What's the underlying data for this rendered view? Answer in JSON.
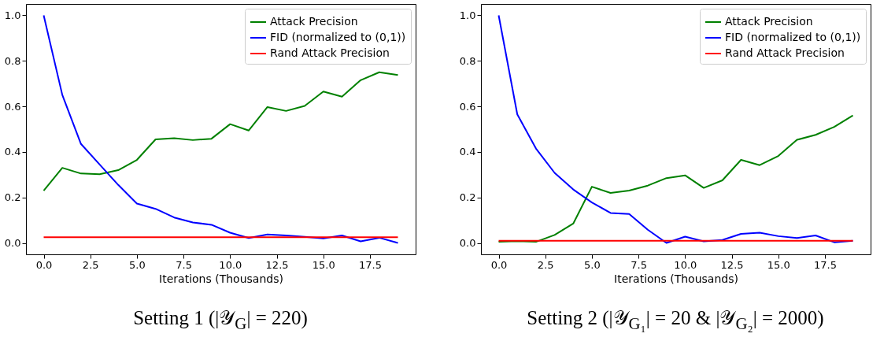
{
  "chart_data": [
    {
      "type": "line",
      "title": "Setting 1 (|𝒴$_{G}$| = 220)",
      "xlabel": "Iterations (Thousands)",
      "x": [
        0,
        1,
        2,
        3,
        4,
        5,
        6,
        7,
        8,
        9,
        10,
        11,
        12,
        13,
        14,
        15,
        16,
        17,
        18,
        19
      ],
      "xlim": [
        -0.95,
        19.95
      ],
      "ylim": [
        -0.05,
        1.05
      ],
      "xticks": [
        {
          "value": 0,
          "label": "0.0"
        },
        {
          "value": 2.5,
          "label": "2.5"
        },
        {
          "value": 5,
          "label": "5.0"
        },
        {
          "value": 7.5,
          "label": "7.5"
        },
        {
          "value": 10,
          "label": "10.0"
        },
        {
          "value": 12.5,
          "label": "12.5"
        },
        {
          "value": 15,
          "label": "15.0"
        },
        {
          "value": 17.5,
          "label": "17.5"
        }
      ],
      "yticks": [
        {
          "value": 0,
          "label": "0.0"
        },
        {
          "value": 0.2,
          "label": "0.2"
        },
        {
          "value": 0.4,
          "label": "0.4"
        },
        {
          "value": 0.6,
          "label": "0.6"
        },
        {
          "value": 0.8,
          "label": "0.8"
        },
        {
          "value": 1,
          "label": "1.0"
        }
      ],
      "grid": false,
      "legend": "top right",
      "series": [
        {
          "name": "Attack Precision",
          "color": "#008000",
          "values": [
            0.23,
            0.33,
            0.305,
            0.302,
            0.32,
            0.365,
            0.455,
            0.46,
            0.452,
            0.458,
            0.522,
            0.494,
            0.597,
            0.58,
            0.602,
            0.665,
            0.643,
            0.715,
            0.75,
            0.738
          ]
        },
        {
          "name": "FID (normalized to (0,1))",
          "color": "#0000ff",
          "values": [
            1.0,
            0.65,
            0.435,
            0.345,
            0.255,
            0.173,
            0.15,
            0.112,
            0.09,
            0.08,
            0.045,
            0.022,
            0.037,
            0.033,
            0.027,
            0.02,
            0.033,
            0.007,
            0.023,
            0.0
          ]
        },
        {
          "name": "Rand Attack Precision",
          "color": "#ff0000",
          "values": [
            0.025,
            0.025,
            0.025,
            0.025,
            0.025,
            0.025,
            0.025,
            0.025,
            0.025,
            0.025,
            0.025,
            0.025,
            0.025,
            0.025,
            0.025,
            0.025,
            0.025,
            0.025,
            0.025,
            0.025
          ]
        }
      ]
    },
    {
      "type": "line",
      "title": "Setting 2 (|𝒴$_{G₁}$| = 20 & |𝒴$_{G₂}$| = 2000)",
      "xlabel": "Iterations (Thousands)",
      "x": [
        0,
        1,
        2,
        3,
        4,
        5,
        6,
        7,
        8,
        9,
        10,
        11,
        12,
        13,
        14,
        15,
        16,
        17,
        18,
        19
      ],
      "xlim": [
        -0.95,
        19.95
      ],
      "ylim": [
        -0.05,
        1.05
      ],
      "xticks": [
        {
          "value": 0,
          "label": "0.0"
        },
        {
          "value": 2.5,
          "label": "2.5"
        },
        {
          "value": 5,
          "label": "5.0"
        },
        {
          "value": 7.5,
          "label": "7.5"
        },
        {
          "value": 10,
          "label": "10.0"
        },
        {
          "value": 12.5,
          "label": "12.5"
        },
        {
          "value": 15,
          "label": "15.0"
        },
        {
          "value": 17.5,
          "label": "17.5"
        }
      ],
      "yticks": [
        {
          "value": 0,
          "label": "0.0"
        },
        {
          "value": 0.2,
          "label": "0.2"
        },
        {
          "value": 0.4,
          "label": "0.4"
        },
        {
          "value": 0.6,
          "label": "0.6"
        },
        {
          "value": 0.8,
          "label": "0.8"
        },
        {
          "value": 1,
          "label": "1.0"
        }
      ],
      "grid": false,
      "legend": "top right",
      "series": [
        {
          "name": "Attack Precision",
          "color": "#008000",
          "values": [
            0.005,
            0.008,
            0.005,
            0.035,
            0.085,
            0.247,
            0.22,
            0.23,
            0.252,
            0.285,
            0.297,
            0.242,
            0.275,
            0.365,
            0.342,
            0.382,
            0.453,
            0.475,
            0.51,
            0.56
          ]
        },
        {
          "name": "FID (normalized to (0,1))",
          "color": "#0000ff",
          "values": [
            1.0,
            0.565,
            0.415,
            0.308,
            0.235,
            0.178,
            0.132,
            0.127,
            0.058,
            0.0,
            0.028,
            0.007,
            0.013,
            0.04,
            0.045,
            0.03,
            0.022,
            0.033,
            0.003,
            0.01
          ]
        },
        {
          "name": "Rand Attack Precision",
          "color": "#ff0000",
          "values": [
            0.01,
            0.01,
            0.01,
            0.01,
            0.01,
            0.01,
            0.01,
            0.01,
            0.01,
            0.01,
            0.01,
            0.01,
            0.01,
            0.01,
            0.01,
            0.01,
            0.01,
            0.01,
            0.01,
            0.01
          ]
        }
      ]
    }
  ]
}
